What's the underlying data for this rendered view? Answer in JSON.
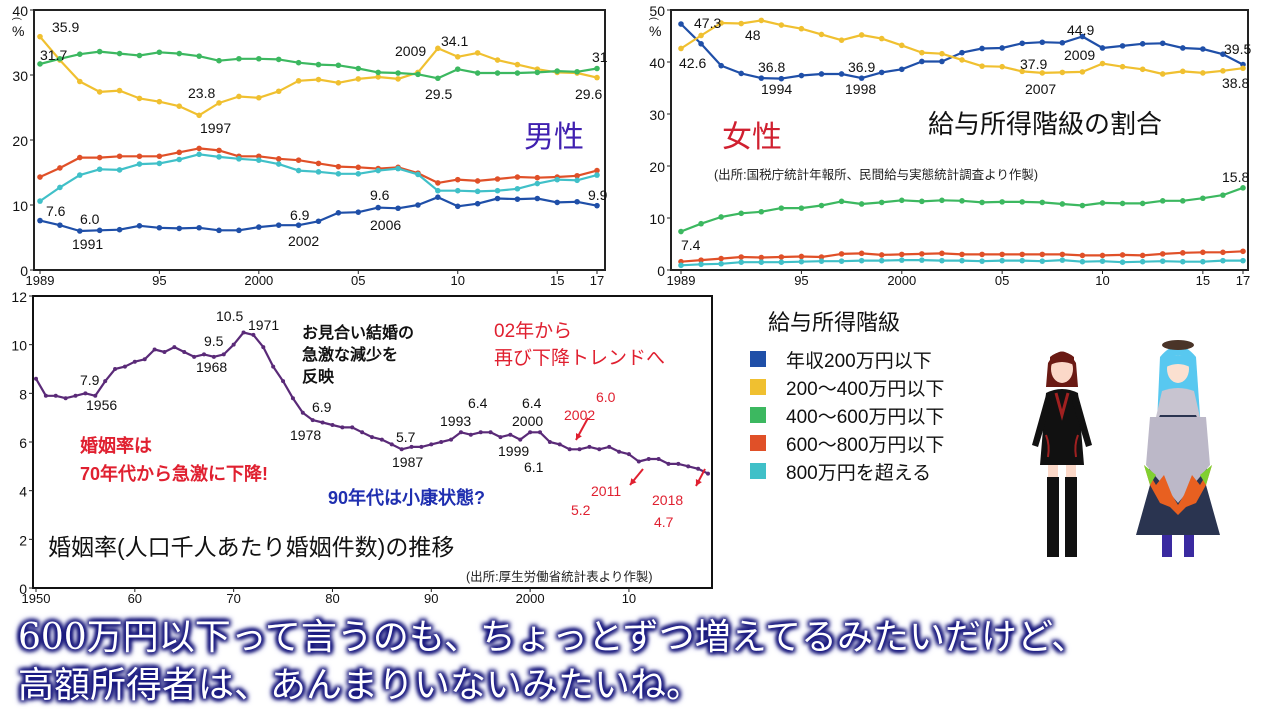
{
  "colors": {
    "under200": "#1f4fa8",
    "r200_400": "#f0c030",
    "r400_600": "#3cb860",
    "r600_800": "#e05028",
    "over800": "#40c0c8",
    "marriage": "#5a2a78",
    "red_note": "#e02030",
    "blue_note": "#1f2fb0",
    "men_label": "#4020b0",
    "women_label": "#d02030"
  },
  "chart_data": [
    {
      "type": "line",
      "id": "men",
      "title": "男性",
      "ylabel": "%",
      "ylim": [
        0,
        40
      ],
      "yticks": [
        "0",
        "10",
        "20",
        "30",
        "40"
      ],
      "xlim": [
        1989,
        2017
      ],
      "xticks": [
        {
          "value": 1989,
          "label": "1989"
        },
        {
          "value": 1995,
          "label": "95"
        },
        {
          "value": 2000,
          "label": "2000"
        },
        {
          "value": 2005,
          "label": "05"
        },
        {
          "value": 2010,
          "label": "10"
        },
        {
          "value": 2015,
          "label": "15"
        },
        {
          "value": 2017,
          "label": "17"
        }
      ],
      "x": [
        1989,
        1990,
        1991,
        1992,
        1993,
        1994,
        1995,
        1996,
        1997,
        1998,
        1999,
        2000,
        2001,
        2002,
        2003,
        2004,
        2005,
        2006,
        2007,
        2008,
        2009,
        2010,
        2011,
        2012,
        2013,
        2014,
        2015,
        2016,
        2017
      ],
      "series": [
        {
          "name": "年収200万円以下",
          "color_key": "under200",
          "values": [
            7.6,
            6.9,
            6.0,
            6.1,
            6.2,
            6.8,
            6.5,
            6.4,
            6.5,
            6.1,
            6.1,
            6.6,
            6.9,
            6.9,
            7.5,
            8.8,
            8.9,
            9.6,
            9.5,
            10.0,
            11.2,
            9.8,
            10.2,
            11.0,
            10.9,
            11.0,
            10.4,
            10.5,
            9.9
          ]
        },
        {
          "name": "200〜400万円以下",
          "color_key": "r200_400",
          "values": [
            35.9,
            32.3,
            29.0,
            27.4,
            27.6,
            26.4,
            25.9,
            25.2,
            23.8,
            25.7,
            26.7,
            26.5,
            27.5,
            29.1,
            29.3,
            28.8,
            29.4,
            29.7,
            29.4,
            30.4,
            34.1,
            32.8,
            33.4,
            32.3,
            31.6,
            30.9,
            30.4,
            30.3,
            29.6
          ]
        },
        {
          "name": "400〜600万円以下",
          "color_key": "r400_600",
          "values": [
            31.7,
            32.5,
            33.2,
            33.6,
            33.3,
            33.0,
            33.5,
            33.3,
            32.9,
            32.2,
            32.5,
            32.5,
            32.4,
            31.9,
            31.6,
            31.5,
            31.0,
            30.4,
            30.3,
            30.1,
            29.5,
            30.9,
            30.3,
            30.3,
            30.3,
            30.4,
            30.6,
            30.5,
            31.0
          ]
        },
        {
          "name": "600〜800万円以下",
          "color_key": "r600_800",
          "values": [
            14.3,
            15.7,
            17.3,
            17.3,
            17.5,
            17.5,
            17.5,
            18.1,
            18.7,
            18.4,
            17.5,
            17.5,
            17.1,
            16.9,
            16.4,
            15.9,
            15.8,
            15.6,
            15.8,
            14.9,
            13.4,
            13.9,
            13.7,
            14.0,
            14.3,
            14.2,
            14.3,
            14.5,
            15.3
          ]
        },
        {
          "name": "800万円を超える",
          "color_key": "over800",
          "values": [
            10.6,
            12.7,
            14.6,
            15.5,
            15.4,
            16.3,
            16.4,
            17.0,
            17.8,
            17.4,
            17.1,
            16.9,
            16.3,
            15.3,
            15.1,
            14.8,
            14.8,
            15.3,
            15.6,
            14.7,
            12.2,
            12.2,
            12.1,
            12.2,
            12.5,
            13.3,
            13.9,
            13.8,
            14.6
          ]
        }
      ],
      "annotations": [
        "35.9",
        "31.7",
        "23.8",
        "1997",
        "7.6",
        "6.0",
        "1991",
        "6.9",
        "2002",
        "9.6",
        "2006",
        "2009",
        "34.1",
        "29.5",
        "31",
        "29.6",
        "9.9"
      ]
    },
    {
      "type": "line",
      "id": "women",
      "title": "女性",
      "ylabel": "%",
      "ylim": [
        0,
        50
      ],
      "yticks": [
        "0",
        "10",
        "20",
        "30",
        "40",
        "50"
      ],
      "xlim": [
        1989,
        2017
      ],
      "xticks": [
        {
          "value": 1989,
          "label": "1989"
        },
        {
          "value": 1995,
          "label": "95"
        },
        {
          "value": 2000,
          "label": "2000"
        },
        {
          "value": 2005,
          "label": "05"
        },
        {
          "value": 2010,
          "label": "10"
        },
        {
          "value": 2015,
          "label": "15"
        },
        {
          "value": 2017,
          "label": "17"
        }
      ],
      "x": [
        1989,
        1990,
        1991,
        1992,
        1993,
        1994,
        1995,
        1996,
        1997,
        1998,
        1999,
        2000,
        2001,
        2002,
        2003,
        2004,
        2005,
        2006,
        2007,
        2008,
        2009,
        2010,
        2011,
        2012,
        2013,
        2014,
        2015,
        2016,
        2017
      ],
      "series": [
        {
          "name": "年収200万円以下",
          "color_key": "under200",
          "values": [
            47.3,
            43.5,
            39.3,
            37.8,
            36.9,
            36.8,
            37.4,
            37.7,
            37.7,
            36.9,
            38.0,
            38.6,
            40.1,
            40.1,
            41.8,
            42.6,
            42.7,
            43.6,
            43.8,
            43.7,
            44.9,
            42.7,
            43.1,
            43.5,
            43.6,
            42.7,
            42.5,
            41.5,
            39.5
          ]
        },
        {
          "name": "200〜400万円以下",
          "color_key": "r200_400",
          "values": [
            42.6,
            45.1,
            47.5,
            47.4,
            48.0,
            47.1,
            46.4,
            45.3,
            44.2,
            45.2,
            44.5,
            43.2,
            41.8,
            41.6,
            40.4,
            39.2,
            39.1,
            38.2,
            37.9,
            38.0,
            38.1,
            39.7,
            39.1,
            38.6,
            37.7,
            38.2,
            37.9,
            38.3,
            38.8
          ]
        },
        {
          "name": "400〜600万円以下",
          "color_key": "r400_600",
          "values": [
            7.4,
            8.9,
            10.2,
            10.9,
            11.2,
            11.9,
            11.9,
            12.4,
            13.2,
            12.7,
            13.0,
            13.4,
            13.2,
            13.4,
            13.3,
            13.0,
            13.1,
            13.1,
            13.0,
            12.7,
            12.4,
            12.9,
            12.8,
            12.8,
            13.3,
            13.3,
            13.8,
            14.4,
            15.8
          ]
        },
        {
          "name": "600〜800万円以下",
          "color_key": "r600_800",
          "values": [
            1.6,
            1.9,
            2.2,
            2.5,
            2.4,
            2.5,
            2.6,
            2.5,
            3.1,
            3.2,
            2.9,
            3.0,
            3.1,
            3.2,
            3.0,
            3.0,
            3.0,
            3.0,
            3.0,
            3.0,
            2.8,
            2.8,
            2.9,
            2.8,
            3.1,
            3.3,
            3.4,
            3.4,
            3.6
          ]
        },
        {
          "name": "800万円を超える",
          "color_key": "over800",
          "values": [
            0.9,
            1.1,
            1.2,
            1.5,
            1.5,
            1.5,
            1.6,
            1.7,
            1.7,
            1.8,
            1.8,
            1.9,
            1.9,
            1.8,
            1.8,
            1.7,
            1.8,
            1.8,
            1.7,
            1.9,
            1.6,
            1.7,
            1.5,
            1.6,
            1.7,
            1.6,
            1.6,
            1.8,
            1.8
          ]
        }
      ],
      "annotations": [
        "47.3",
        "42.6",
        "48",
        "36.8",
        "1994",
        "36.9",
        "1998",
        "37.9",
        "2007",
        "44.9",
        "2009",
        "39.5",
        "38.8",
        "7.4",
        "15.8"
      ]
    },
    {
      "type": "line",
      "id": "marriage",
      "title": "婚姻率(人口千人あたり婚姻件数)の推移",
      "ylim": [
        0,
        12
      ],
      "yticks": [
        "0",
        "2",
        "4",
        "6",
        "8",
        "10",
        "12"
      ],
      "xlim": [
        1950,
        2018
      ],
      "xticks": [
        {
          "value": 1950,
          "label": "1950"
        },
        {
          "value": 1960,
          "label": "60"
        },
        {
          "value": 1970,
          "label": "70"
        },
        {
          "value": 1980,
          "label": "80"
        },
        {
          "value": 1990,
          "label": "90"
        },
        {
          "value": 2000,
          "label": "2000"
        },
        {
          "value": 2010,
          "label": "10"
        }
      ],
      "x": [
        1950,
        1951,
        1952,
        1953,
        1954,
        1955,
        1956,
        1957,
        1958,
        1959,
        1960,
        1961,
        1962,
        1963,
        1964,
        1965,
        1966,
        1967,
        1968,
        1969,
        1970,
        1971,
        1972,
        1973,
        1974,
        1975,
        1976,
        1977,
        1978,
        1979,
        1980,
        1981,
        1982,
        1983,
        1984,
        1985,
        1986,
        1987,
        1988,
        1989,
        1990,
        1991,
        1992,
        1993,
        1994,
        1995,
        1996,
        1997,
        1998,
        1999,
        2000,
        2001,
        2002,
        2003,
        2004,
        2005,
        2006,
        2007,
        2008,
        2009,
        2010,
        2011,
        2012,
        2013,
        2014,
        2015,
        2016,
        2017,
        2018
      ],
      "values": [
        8.6,
        7.9,
        7.9,
        7.8,
        7.9,
        8.0,
        7.9,
        8.5,
        9.0,
        9.1,
        9.3,
        9.4,
        9.8,
        9.7,
        9.9,
        9.7,
        9.5,
        9.6,
        9.5,
        9.6,
        10.0,
        10.5,
        10.4,
        9.9,
        9.1,
        8.5,
        7.8,
        7.2,
        6.9,
        6.8,
        6.7,
        6.6,
        6.6,
        6.4,
        6.2,
        6.1,
        5.9,
        5.7,
        5.8,
        5.8,
        5.9,
        6.0,
        6.1,
        6.4,
        6.3,
        6.4,
        6.4,
        6.2,
        6.3,
        6.1,
        6.4,
        6.4,
        6.0,
        5.9,
        5.7,
        5.7,
        5.8,
        5.7,
        5.8,
        5.6,
        5.5,
        5.2,
        5.3,
        5.3,
        5.1,
        5.1,
        5.0,
        4.9,
        4.7
      ],
      "annotations": [
        "7.9",
        "1956",
        "9.5",
        "1968",
        "10.5",
        "1971",
        "6.9",
        "1978",
        "5.7",
        "1987",
        "1993",
        "6.4",
        "6.4",
        "2000",
        "1999",
        "6.1",
        "2002",
        "6.0",
        "2011",
        "5.2",
        "2018",
        "4.7"
      ],
      "source": "(出所:厚生労働省統計表より作製)"
    }
  ],
  "men_chart": {
    "unit": "%",
    "label": "男性"
  },
  "women_chart": {
    "unit": "%",
    "label": "女性",
    "heading": "給与所得階級の割合",
    "source": "(出所:国税庁統計年報所、民間給与実態統計調査より作製)"
  },
  "marriage_notes": {
    "omiai": [
      "お見合い結婚の",
      "急激な減少を",
      "反映"
    ],
    "decline": [
      "婚姻率は",
      "70年代から急激に下降!"
    ],
    "plateau": "90年代は小康状態?",
    "trend": [
      "02年から",
      "再び下降トレンドへ"
    ]
  },
  "legend": {
    "title": "給与所得階級",
    "items": [
      {
        "label": "年収200万円以下",
        "color_key": "under200"
      },
      {
        "label": "200〜400万円以下",
        "color_key": "r200_400"
      },
      {
        "label": "400〜600万円以下",
        "color_key": "r400_600"
      },
      {
        "label": "600〜800万円以下",
        "color_key": "r600_800"
      },
      {
        "label": "800万円を超える",
        "color_key": "over800"
      }
    ]
  },
  "subtitle": {
    "line1": "600万円以下って言うのも、ちょっとずつ増えてるみたいだけど、",
    "line2": "高額所得者は、あんまりいないみたいね。"
  }
}
